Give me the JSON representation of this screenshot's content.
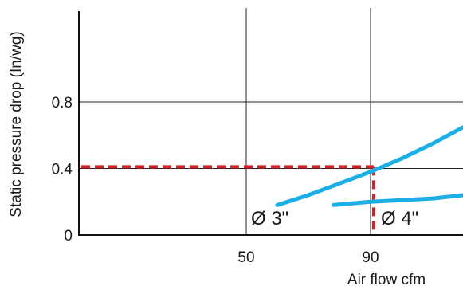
{
  "chart_data": {
    "type": "line",
    "title": "",
    "xlabel": "Air flow cfm",
    "ylabel": "Static pressure drop (In/wg)",
    "xlim": [
      0,
      130
    ],
    "ylim": [
      0,
      1.35
    ],
    "x_ticks": [
      {
        "value": 50,
        "label": "50"
      },
      {
        "value": 90,
        "label": "90"
      }
    ],
    "y_ticks": [
      {
        "value": 0,
        "label": "0"
      },
      {
        "value": 0.4,
        "label": "0.4"
      },
      {
        "value": 0.8,
        "label": "0.8"
      }
    ],
    "grid": true,
    "series": [
      {
        "name": "Ø 3\"",
        "color": "#1ab0e6",
        "x": [
          60,
          70,
          80,
          90,
          100,
          110,
          120,
          130
        ],
        "y": [
          0.18,
          0.24,
          0.31,
          0.38,
          0.46,
          0.55,
          0.65,
          0.76
        ]
      },
      {
        "name": "Ø 4\"",
        "color": "#1ab0e6",
        "x": [
          78,
          90,
          100,
          110,
          120,
          130
        ],
        "y": [
          0.18,
          0.2,
          0.21,
          0.22,
          0.24,
          0.27
        ]
      }
    ],
    "reference": {
      "x": 91,
      "y": 0.41,
      "color": "#d6212a",
      "style": "dashed"
    }
  }
}
